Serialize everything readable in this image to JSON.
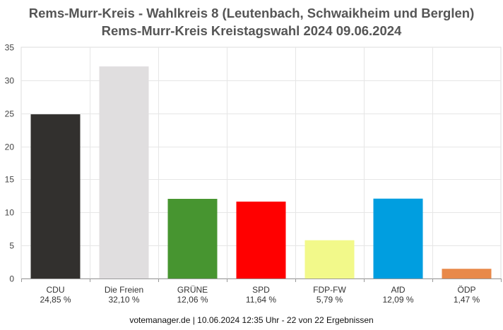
{
  "header": {
    "title": "Rems-Murr-Kreis - Wahlkreis 8 (Leutenbach, Schwaikheim und Berglen)",
    "subtitle": "Rems-Murr-Kreis Kreistagswahl 2024 09.06.2024"
  },
  "footer": {
    "source": "votemanager.de | 10.06.2024 12:35 Uhr - 22 von 22 Ergebnissen"
  },
  "chart_data": {
    "type": "bar",
    "title": "Rems-Murr-Kreis - Wahlkreis 8 (Leutenbach, Schwaikheim und Berglen)",
    "subtitle": "Rems-Murr-Kreis Kreistagswahl 2024 09.06.2024",
    "categories": [
      "CDU",
      "Die Freien",
      "GRÜNE",
      "SPD",
      "FDP-FW",
      "AfD",
      "ÖDP"
    ],
    "values": [
      24.85,
      32.1,
      12.06,
      11.64,
      5.79,
      12.09,
      1.47
    ],
    "value_labels": [
      "24,85 %",
      "32,10 %",
      "12,06 %",
      "11,64 %",
      "5,79 %",
      "12,09 %",
      "1,47 %"
    ],
    "colors": [
      "#32302e",
      "#e0dedf",
      "#479530",
      "#ff0000",
      "#f2f98a",
      "#009ee0",
      "#e8894a"
    ],
    "ylim": [
      0,
      35
    ],
    "yticks": [
      0,
      5,
      10,
      15,
      20,
      25,
      30,
      35
    ],
    "grid": true,
    "legend": "none",
    "xlabel": "",
    "ylabel": ""
  }
}
